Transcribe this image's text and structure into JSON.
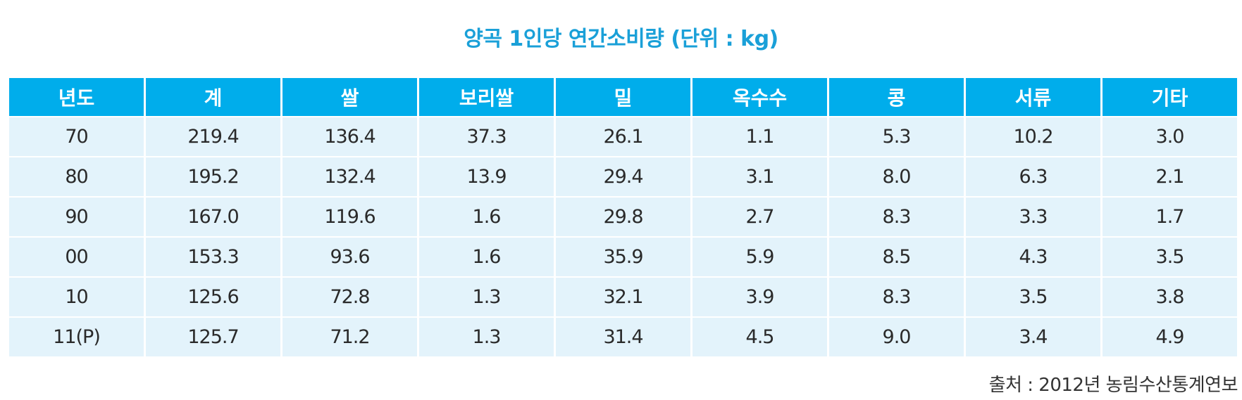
{
  "chart_data": {
    "type": "table",
    "title": "양곡 1인당 연간소비량 (단위 : kg)",
    "columns": [
      "년도",
      "계",
      "쌀",
      "보리쌀",
      "밀",
      "옥수수",
      "콩",
      "서류",
      "기타"
    ],
    "rows": [
      [
        "70",
        "219.4",
        "136.4",
        "37.3",
        "26.1",
        "1.1",
        "5.3",
        "10.2",
        "3.0"
      ],
      [
        "80",
        "195.2",
        "132.4",
        "13.9",
        "29.4",
        "3.1",
        "8.0",
        "6.3",
        "2.1"
      ],
      [
        "90",
        "167.0",
        "119.6",
        "1.6",
        "29.8",
        "2.7",
        "8.3",
        "3.3",
        "1.7"
      ],
      [
        "00",
        "153.3",
        "93.6",
        "1.6",
        "35.9",
        "5.9",
        "8.5",
        "4.3",
        "3.5"
      ],
      [
        "10",
        "125.6",
        "72.8",
        "1.3",
        "32.1",
        "3.9",
        "8.3",
        "3.5",
        "3.8"
      ],
      [
        "11(P)",
        "125.7",
        "71.2",
        "1.3",
        "31.4",
        "4.5",
        "9.0",
        "3.4",
        "4.9"
      ]
    ],
    "source": "출처 : 2012년 농림수산통계연보",
    "header_color": "#00adeb",
    "row_color": "#e3f3fb",
    "title_color": "#1aa0d8"
  }
}
